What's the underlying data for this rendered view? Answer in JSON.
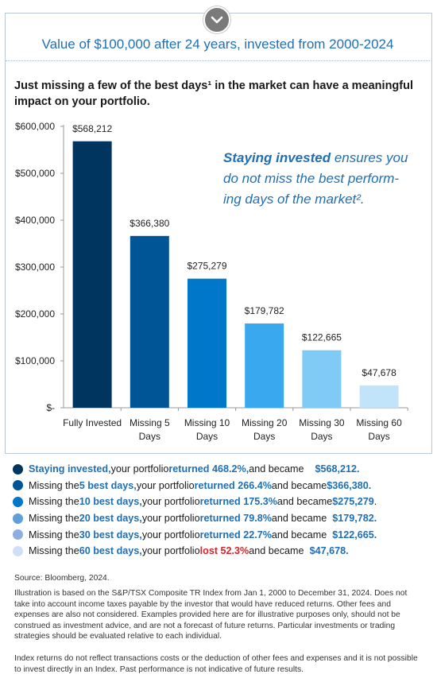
{
  "header": {
    "title": "Value of $100,000 after 24 years, invested from 2000-2024"
  },
  "subtitle": "Just missing a few of the best days¹ in the market can have a meaningful impact on your portfolio.",
  "callout": {
    "bold": "Staying invested",
    "rest": " ensures you do not miss the best perform-ing days of the market²."
  },
  "chart_data": {
    "type": "bar",
    "categories": [
      "Fully Invested",
      "Missing 5 Days",
      "Missing 10 Days",
      "Missing 20 Days",
      "Missing 30 Days",
      "Missing 60 Days"
    ],
    "category_lines": [
      [
        "Fully Invested"
      ],
      [
        "Missing 5",
        "Days"
      ],
      [
        "Missing 10",
        "Days"
      ],
      [
        "Missing 20",
        "Days"
      ],
      [
        "Missing 30",
        "Days"
      ],
      [
        "Missing 60",
        "Days"
      ]
    ],
    "values": [
      568212,
      366380,
      275279,
      179782,
      122665,
      47678
    ],
    "data_labels": [
      "$568,212",
      "$366,380",
      "$275,279",
      "$179,782",
      "$122,665",
      "$47,678"
    ],
    "bar_colors": [
      "#00355f",
      "#005596",
      "#0077c8",
      "#3aa8ee",
      "#7fcbf6",
      "#c1e4fa"
    ],
    "ylim": [
      0,
      600000
    ],
    "yticks": [
      0,
      100000,
      200000,
      300000,
      400000,
      500000,
      600000
    ],
    "ytick_labels": [
      "$-",
      "$100,000",
      "$200,000",
      "$300,000",
      "$400,000",
      "$500,000",
      "$600,000"
    ],
    "grid": false
  },
  "bullets": [
    {
      "color": "#00355f",
      "segments": [
        [
          "hl",
          "Staying invested,"
        ],
        [
          "",
          " your portfolio "
        ],
        [
          "hl",
          "returned 468.2%,"
        ],
        [
          "",
          " and became    "
        ],
        [
          "amt",
          "$568,212."
        ]
      ]
    },
    {
      "color": "#005596",
      "segments": [
        [
          "",
          "Missing the "
        ],
        [
          "hl",
          "5 best days,"
        ],
        [
          "",
          " your portfolio "
        ],
        [
          "hl",
          "returned 266.4%"
        ],
        [
          "",
          " and became "
        ],
        [
          "amt",
          "$366,380."
        ]
      ]
    },
    {
      "color": "#0077c8",
      "segments": [
        [
          "",
          "Missing the "
        ],
        [
          "hl",
          "10 best days,"
        ],
        [
          "",
          " your portfolio "
        ],
        [
          "hl",
          "returned 175.3%"
        ],
        [
          "",
          " and became "
        ],
        [
          "amt",
          "$275,279"
        ],
        [
          "",
          " ."
        ]
      ]
    },
    {
      "color": "#5e9fd8",
      "segments": [
        [
          "",
          "Missing the "
        ],
        [
          "hl",
          "20 best days,"
        ],
        [
          "",
          " your portfolio "
        ],
        [
          "hl",
          "returned 79.8%"
        ],
        [
          "",
          " and became  "
        ],
        [
          "amt",
          "$179,782."
        ]
      ]
    },
    {
      "color": "#8eaee0",
      "segments": [
        [
          "",
          "Missing the "
        ],
        [
          "hl",
          "30 best days,"
        ],
        [
          "",
          " your portfolio "
        ],
        [
          "hl",
          "returned 22.7%"
        ],
        [
          "",
          " and became  "
        ],
        [
          "amt",
          "$122,665."
        ]
      ]
    },
    {
      "color": "#cfe0f6",
      "segments": [
        [
          "",
          "Missing the "
        ],
        [
          "hl",
          "60 best days,"
        ],
        [
          "",
          " your portfolio "
        ],
        [
          "loss",
          "lost 52.3%"
        ],
        [
          "",
          " and became  "
        ],
        [
          "amt",
          "$47,678."
        ]
      ]
    }
  ],
  "source": "Source: Bloomberg, 2024.",
  "disclaimer_1": "Illustration is based on the S&P/TSX Composite TR Index from Jan 1, 2000 to December 31, 2024. Does not take into account income taxes payable by the investor that would have reduced returns. Other fees and expenses are also not considered. Examples provided here are for illustrative purposes only, should not be construed as investment advice, and are not a forecast of future returns. Particular investments or trading strategies should be evaluated relative to each individual.",
  "disclaimer_2": "Index returns do not reflect transactions costs or the deduction of other fees and expenses and it is not possible to invest directly in an Index. Past performance is not indicative of future results.",
  "icons": {
    "expand": "chevron-down-icon"
  }
}
